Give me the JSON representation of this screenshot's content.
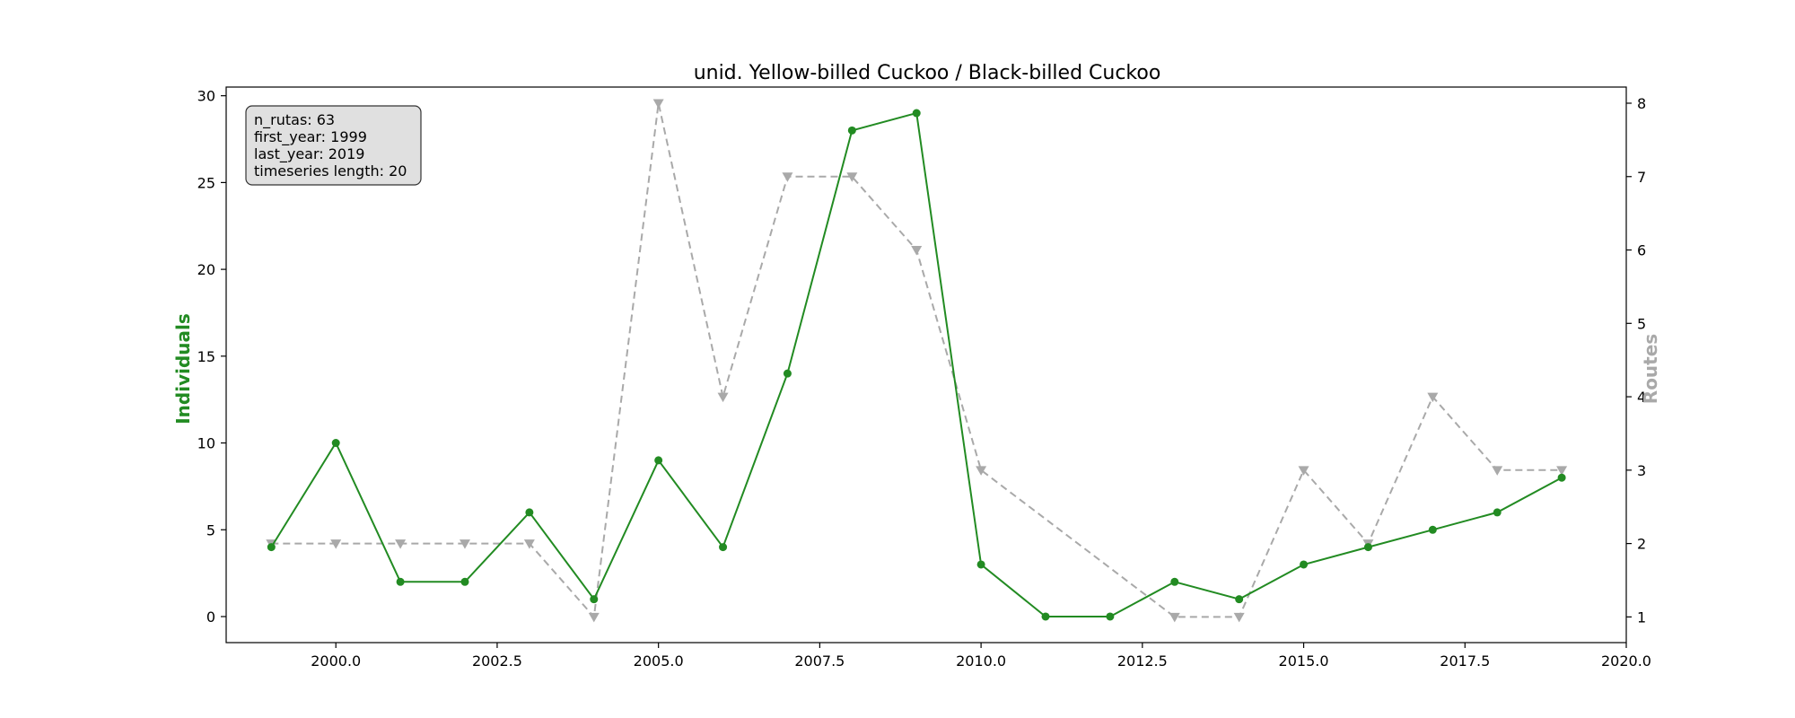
{
  "chart_data": {
    "type": "line",
    "title": "unid. Yellow-billed Cuckoo / Black-billed Cuckoo",
    "ylabel": "Individuals",
    "y2label": "Routes",
    "xlim": [
      1998.3,
      2020.0
    ],
    "ylim": [
      -1.5,
      30.5
    ],
    "y2lim": [
      0.65,
      8.22
    ],
    "x_ticks": [
      "2000.0",
      "2002.5",
      "2005.0",
      "2007.5",
      "2010.0",
      "2012.5",
      "2015.0",
      "2017.5",
      "2020.0"
    ],
    "y_ticks": [
      "0",
      "5",
      "10",
      "15",
      "20",
      "25",
      "30"
    ],
    "y2_ticks": [
      "1",
      "2",
      "3",
      "4",
      "5",
      "6",
      "7",
      "8"
    ],
    "grid": false,
    "series": [
      {
        "name": "Individuals",
        "axis": "left",
        "color": "#228B22",
        "style": "solid",
        "marker": "circle",
        "x": [
          1999,
          2000,
          2001,
          2002,
          2003,
          2004,
          2005,
          2006,
          2007,
          2008,
          2009,
          2010,
          2011,
          2012,
          2013,
          2014,
          2015,
          2016,
          2017,
          2018,
          2019
        ],
        "values": [
          4,
          10,
          2,
          2,
          6,
          1,
          9,
          4,
          14,
          28,
          29,
          3,
          0,
          0,
          2,
          1,
          3,
          4,
          5,
          6,
          8
        ]
      },
      {
        "name": "Routes",
        "axis": "right",
        "color": "#A9A9A9",
        "style": "dashed",
        "marker": "triangle-down",
        "x": [
          1999,
          2000,
          2001,
          2002,
          2003,
          2004,
          2005,
          2006,
          2007,
          2008,
          2009,
          2010,
          2013,
          2014,
          2015,
          2016,
          2017,
          2018,
          2019
        ],
        "values": [
          2,
          2,
          2,
          2,
          2,
          1,
          8,
          4,
          7,
          7,
          6,
          3,
          1,
          1,
          3,
          2,
          4,
          3,
          3
        ]
      }
    ],
    "info_box": {
      "lines": [
        "n_rutas: 63",
        "first_year: 1999",
        "last_year: 2019",
        "timeseries length: 20"
      ],
      "position": "top-left"
    }
  }
}
